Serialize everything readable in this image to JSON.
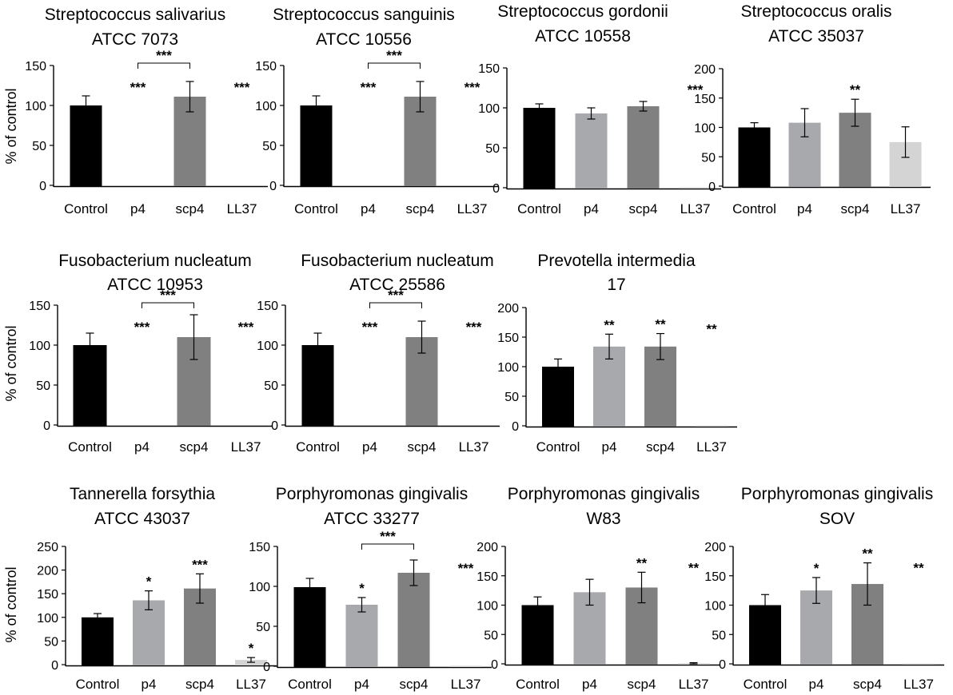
{
  "figure": {
    "ylabel": "% of control"
  },
  "chart_data": [
    {
      "type": "bar",
      "title": "Streptococcus salivarius",
      "subtitle": "ATCC 7073",
      "ylabel": "% of control",
      "categories": [
        "Control",
        "p4",
        "scp4",
        "LL37"
      ],
      "ylim": [
        0,
        150
      ],
      "yticks": [
        0,
        50,
        100,
        150
      ],
      "values": [
        100,
        0,
        111,
        0
      ],
      "errors": [
        12,
        0,
        19,
        0
      ],
      "colors": [
        "#000000",
        "#a7a9ac",
        "#808080",
        "#d4d4d4"
      ],
      "significance": [
        "",
        "***",
        "",
        "***"
      ],
      "brackets": [
        {
          "from": 1,
          "to": 2,
          "label": "***"
        }
      ]
    },
    {
      "type": "bar",
      "title": "Streptococcus sanguinis",
      "subtitle": "ATCC 10556",
      "ylabel": "",
      "categories": [
        "Control",
        "p4",
        "scp4",
        "LL37"
      ],
      "ylim": [
        0,
        150
      ],
      "yticks": [
        0,
        50,
        100,
        150
      ],
      "values": [
        100,
        0,
        111,
        0
      ],
      "errors": [
        12,
        0,
        19,
        0
      ],
      "colors": [
        "#000000",
        "#a7a9ac",
        "#808080",
        "#d4d4d4"
      ],
      "significance": [
        "",
        "***",
        "",
        "***"
      ],
      "brackets": [
        {
          "from": 1,
          "to": 2,
          "label": "***"
        }
      ]
    },
    {
      "type": "bar",
      "title": "Streptococcus gordonii",
      "subtitle": "ATCC 10558",
      "ylabel": "",
      "categories": [
        "Control",
        "p4",
        "scp4",
        "LL37"
      ],
      "ylim": [
        0,
        150
      ],
      "yticks": [
        0,
        50,
        100,
        150
      ],
      "values": [
        100,
        93,
        102,
        0.5
      ],
      "errors": [
        5,
        7,
        6,
        0
      ],
      "colors": [
        "#000000",
        "#a7a9ac",
        "#808080",
        "#d4d4d4"
      ],
      "significance": [
        "",
        "",
        "",
        "***"
      ],
      "brackets": []
    },
    {
      "type": "bar",
      "title": "Streptococcus oralis",
      "subtitle": "ATCC 35037",
      "ylabel": "",
      "categories": [
        "Control",
        "p4",
        "scp4",
        "LL37"
      ],
      "ylim": [
        0,
        200
      ],
      "yticks": [
        0,
        50,
        100,
        150,
        200
      ],
      "values": [
        100,
        108,
        125,
        75
      ],
      "errors": [
        8,
        24,
        23,
        26
      ],
      "colors": [
        "#000000",
        "#a7a9ac",
        "#808080",
        "#d4d4d4"
      ],
      "significance": [
        "",
        "",
        "**",
        ""
      ],
      "brackets": []
    },
    {
      "type": "bar",
      "title": "Fusobacterium nucleatum",
      "subtitle": "ATCC 10953",
      "ylabel": "% of control",
      "categories": [
        "Control",
        "p4",
        "scp4",
        "LL37"
      ],
      "ylim": [
        0,
        150
      ],
      "yticks": [
        0,
        50,
        100,
        150
      ],
      "values": [
        100,
        0,
        110,
        0
      ],
      "errors": [
        15,
        0,
        28,
        0
      ],
      "colors": [
        "#000000",
        "#a7a9ac",
        "#808080",
        "#d4d4d4"
      ],
      "significance": [
        "",
        "***",
        "",
        "***"
      ],
      "brackets": [
        {
          "from": 1,
          "to": 2,
          "label": "***"
        }
      ]
    },
    {
      "type": "bar",
      "title": "Fusobacterium nucleatum",
      "subtitle": "ATCC 25586",
      "ylabel": "",
      "categories": [
        "Control",
        "p4",
        "scp4",
        "LL37"
      ],
      "ylim": [
        0,
        150
      ],
      "yticks": [
        0,
        50,
        100,
        150
      ],
      "values": [
        100,
        0,
        110,
        0
      ],
      "errors": [
        15,
        0,
        20,
        0
      ],
      "colors": [
        "#000000",
        "#a7a9ac",
        "#808080",
        "#d4d4d4"
      ],
      "significance": [
        "",
        "***",
        "",
        "***"
      ],
      "brackets": [
        {
          "from": 1,
          "to": 2,
          "label": "***"
        }
      ]
    },
    {
      "type": "bar",
      "title": "Prevotella intermedia",
      "subtitle": "17",
      "ylabel": "",
      "categories": [
        "Control",
        "p4",
        "scp4",
        "LL37"
      ],
      "ylim": [
        0,
        200
      ],
      "yticks": [
        0,
        50,
        100,
        150,
        200
      ],
      "values": [
        100,
        134,
        134,
        0.5
      ],
      "errors": [
        13,
        21,
        22,
        0
      ],
      "colors": [
        "#000000",
        "#a7a9ac",
        "#808080",
        "#d4d4d4"
      ],
      "significance": [
        "",
        "**",
        "**",
        "**"
      ],
      "brackets": []
    },
    {
      "type": "bar",
      "title": "Tannerella forsythia",
      "subtitle": "ATCC 43037",
      "ylabel": "% of control",
      "categories": [
        "Control",
        "p4",
        "scp4",
        "LL37"
      ],
      "ylim": [
        0,
        250
      ],
      "yticks": [
        0,
        50,
        100,
        150,
        200,
        250
      ],
      "values": [
        100,
        136,
        161,
        10
      ],
      "errors": [
        8,
        20,
        31,
        5
      ],
      "colors": [
        "#000000",
        "#a7a9ac",
        "#808080",
        "#d4d4d4"
      ],
      "significance": [
        "",
        "*",
        "***",
        "*"
      ],
      "brackets": []
    },
    {
      "type": "bar",
      "title": "Porphyromonas gingivalis",
      "subtitle": "ATCC 33277",
      "ylabel": "",
      "categories": [
        "Control",
        "p4",
        "scp4",
        "LL37"
      ],
      "ylim": [
        0,
        150
      ],
      "yticks": [
        0,
        50,
        100,
        150
      ],
      "values": [
        99,
        77,
        117,
        0.5
      ],
      "errors": [
        11,
        9,
        16,
        0
      ],
      "colors": [
        "#000000",
        "#a7a9ac",
        "#808080",
        "#d4d4d4"
      ],
      "significance": [
        "",
        "*",
        "",
        "***"
      ],
      "brackets": [
        {
          "from": 1,
          "to": 2,
          "label": "***"
        }
      ]
    },
    {
      "type": "bar",
      "title": "Porphyromonas gingivalis",
      "subtitle": "W83",
      "ylabel": "",
      "categories": [
        "Control",
        "p4",
        "scp4",
        "LL37"
      ],
      "ylim": [
        0,
        200
      ],
      "yticks": [
        0,
        50,
        100,
        150,
        200
      ],
      "values": [
        100,
        122,
        130,
        1
      ],
      "errors": [
        14,
        22,
        26,
        1
      ],
      "colors": [
        "#000000",
        "#a7a9ac",
        "#808080",
        "#d4d4d4"
      ],
      "significance": [
        "",
        "",
        "**",
        "**"
      ],
      "brackets": []
    },
    {
      "type": "bar",
      "title": "Porphyromonas gingivalis",
      "subtitle": "SOV",
      "ylabel": "",
      "categories": [
        "Control",
        "p4",
        "scp4",
        "LL37"
      ],
      "ylim": [
        0,
        200
      ],
      "yticks": [
        0,
        50,
        100,
        150,
        200
      ],
      "values": [
        100,
        125,
        136,
        0.5
      ],
      "errors": [
        18,
        22,
        36,
        0
      ],
      "colors": [
        "#000000",
        "#a7a9ac",
        "#808080",
        "#d4d4d4"
      ],
      "significance": [
        "",
        "*",
        "**",
        "**"
      ],
      "brackets": []
    }
  ]
}
